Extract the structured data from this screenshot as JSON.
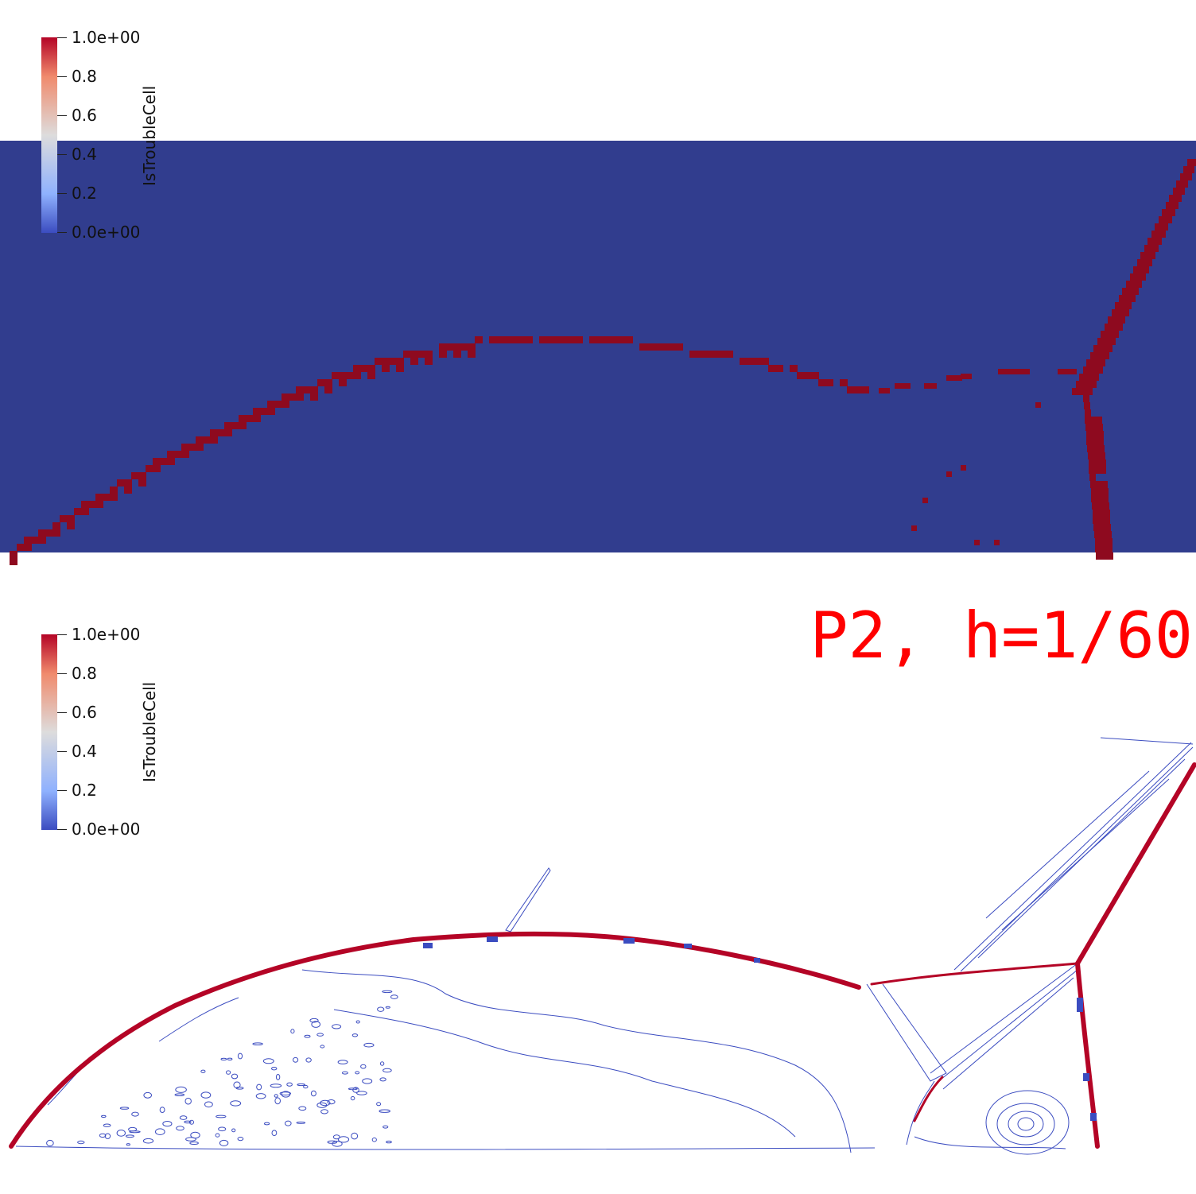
{
  "top_view": {
    "colorbar": {
      "title": "IsTroubleCell",
      "labels": [
        "1.0e+00",
        "0.8",
        "0.6",
        "0.4",
        "0.2",
        "0.0e+00"
      ]
    },
    "colors": {
      "background": "#313d8e",
      "trouble": "#8e0a1f"
    }
  },
  "bottom_view": {
    "colorbar": {
      "title": "IsTroubleCell",
      "labels": [
        "1.0e+00",
        "0.8",
        "0.6",
        "0.4",
        "0.2",
        "0.0e+00"
      ]
    },
    "label": "P2, h=1/60",
    "colors": {
      "contour_low": "#3b4cc0",
      "contour_high": "#b40426"
    }
  }
}
